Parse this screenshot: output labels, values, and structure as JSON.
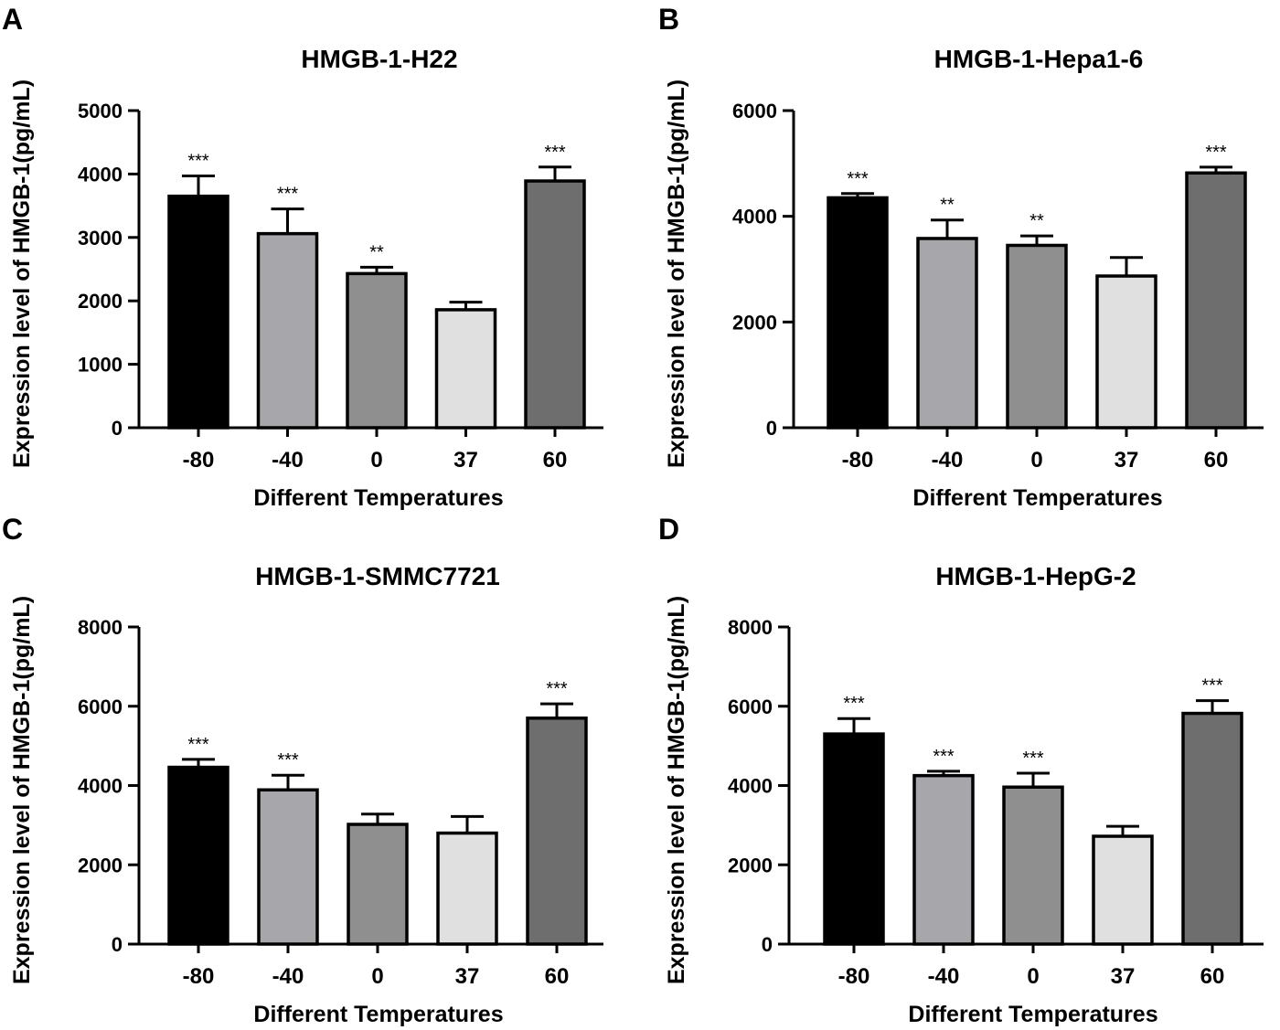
{
  "chart_data": [
    {
      "panel": "A",
      "type": "bar",
      "title": "HMGB-1-H22",
      "xlabel": "Different Temperatures",
      "ylabel": "Expression level of HMGB-1(pg/mL)",
      "categories": [
        "-80",
        "-40",
        "0",
        "37",
        "60"
      ],
      "values": [
        3650,
        3060,
        2430,
        1860,
        3890
      ],
      "errors": [
        320,
        390,
        100,
        120,
        220
      ],
      "significance": [
        "***",
        "***",
        "**",
        "",
        "***"
      ],
      "ylim": [
        0,
        5000
      ],
      "yticks": [
        "0",
        "1000",
        "2000",
        "3000",
        "4000",
        "5000"
      ],
      "colors": [
        "#000000",
        "#a7a7ab",
        "#8f8f8f",
        "#e0e0e0",
        "#6e6e6e"
      ]
    },
    {
      "panel": "B",
      "type": "bar",
      "title": "HMGB-1-Hepa1-6",
      "xlabel": "Different Temperatures",
      "ylabel": "Expression level of HMGB-1(pg/mL)",
      "categories": [
        "-80",
        "-40",
        "0",
        "37",
        "60"
      ],
      "values": [
        4350,
        3580,
        3450,
        2870,
        4820
      ],
      "errors": [
        80,
        350,
        180,
        350,
        110
      ],
      "significance": [
        "***",
        "**",
        "**",
        "",
        "***"
      ],
      "ylim": [
        0,
        6000
      ],
      "yticks": [
        "0",
        "2000",
        "4000",
        "6000"
      ],
      "colors": [
        "#000000",
        "#a7a7ab",
        "#8f8f8f",
        "#e0e0e0",
        "#6e6e6e"
      ]
    },
    {
      "panel": "C",
      "type": "bar",
      "title": "HMGB-1-SMMC7721",
      "xlabel": "Different Temperatures",
      "ylabel": "Expression level of HMGB-1(pg/mL)",
      "categories": [
        "-80",
        "-40",
        "0",
        "37",
        "60"
      ],
      "values": [
        4460,
        3890,
        3020,
        2800,
        5700
      ],
      "errors": [
        200,
        370,
        260,
        420,
        360
      ],
      "significance": [
        "***",
        "***",
        "",
        "",
        "***"
      ],
      "ylim": [
        0,
        8000
      ],
      "yticks": [
        "0",
        "2000",
        "4000",
        "6000",
        "8000"
      ],
      "colors": [
        "#000000",
        "#a7a7ab",
        "#8f8f8f",
        "#e0e0e0",
        "#6e6e6e"
      ]
    },
    {
      "panel": "D",
      "type": "bar",
      "title": "HMGB-1-HepG-2",
      "xlabel": "Different Temperatures",
      "ylabel": "Expression level of HMGB-1(pg/mL)",
      "categories": [
        "-80",
        "-40",
        "0",
        "37",
        "60"
      ],
      "values": [
        5300,
        4250,
        3960,
        2720,
        5820
      ],
      "errors": [
        390,
        110,
        350,
        250,
        320
      ],
      "significance": [
        "***",
        "***",
        "***",
        "",
        "***"
      ],
      "ylim": [
        0,
        8000
      ],
      "yticks": [
        "0",
        "2000",
        "4000",
        "6000",
        "8000"
      ],
      "colors": [
        "#000000",
        "#a7a7ab",
        "#8f8f8f",
        "#e0e0e0",
        "#6e6e6e"
      ]
    }
  ]
}
